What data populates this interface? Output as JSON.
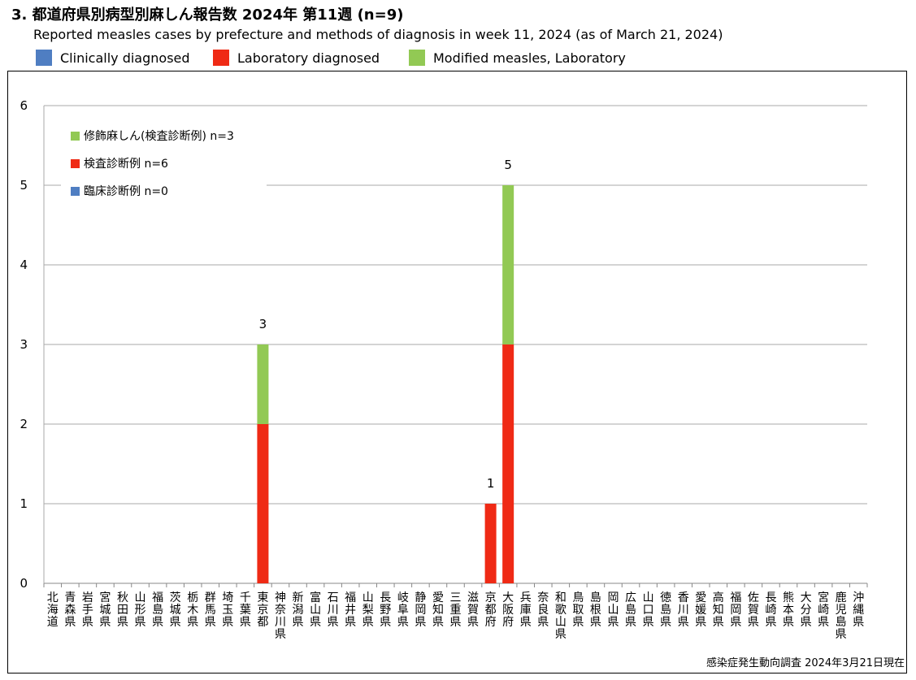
{
  "title": "3. 都道府県別病型別麻しん報告数 2024年 第11週 (n=9)",
  "subtitle": "Reported measles cases by prefecture and methods of diagnosis in week 11, 2024 (as of March 21, 2024)",
  "top_legend": [
    {
      "label": "Clinically diagnosed",
      "color": "#4f7ec2"
    },
    {
      "label": "Laboratory diagnosed",
      "color": "#ef2a15"
    },
    {
      "label": "Modified measles, Laboratory",
      "color": "#92c954"
    }
  ],
  "footnote": "感染症発生動向調査 2024年3月21日現在",
  "chart_data": {
    "type": "bar",
    "stacked": true,
    "ylim": [
      0,
      6
    ],
    "yticks": [
      0,
      1,
      2,
      3,
      4,
      5,
      6
    ],
    "grid": true,
    "legend_position": "top-left",
    "categories": [
      "北海道",
      "青森県",
      "岩手県",
      "宮城県",
      "秋田県",
      "山形県",
      "福島県",
      "茨城県",
      "栃木県",
      "群馬県",
      "埼玉県",
      "千葉県",
      "東京都",
      "神奈川県",
      "新潟県",
      "富山県",
      "石川県",
      "福井県",
      "山梨県",
      "長野県",
      "岐阜県",
      "静岡県",
      "愛知県",
      "三重県",
      "滋賀県",
      "京都府",
      "大阪府",
      "兵庫県",
      "奈良県",
      "和歌山県",
      "鳥取県",
      "島根県",
      "岡山県",
      "広島県",
      "山口県",
      "徳島県",
      "香川県",
      "愛媛県",
      "高知県",
      "福岡県",
      "佐賀県",
      "長崎県",
      "熊本県",
      "大分県",
      "宮崎県",
      "鹿児島県",
      "沖縄県"
    ],
    "series": [
      {
        "name": "臨床診断例 n=0",
        "color": "#4f7ec2",
        "values": [
          0,
          0,
          0,
          0,
          0,
          0,
          0,
          0,
          0,
          0,
          0,
          0,
          0,
          0,
          0,
          0,
          0,
          0,
          0,
          0,
          0,
          0,
          0,
          0,
          0,
          0,
          0,
          0,
          0,
          0,
          0,
          0,
          0,
          0,
          0,
          0,
          0,
          0,
          0,
          0,
          0,
          0,
          0,
          0,
          0,
          0,
          0
        ]
      },
      {
        "name": "検査診断例 n=6",
        "color": "#ef2a15",
        "values": [
          0,
          0,
          0,
          0,
          0,
          0,
          0,
          0,
          0,
          0,
          0,
          0,
          2,
          0,
          0,
          0,
          0,
          0,
          0,
          0,
          0,
          0,
          0,
          0,
          0,
          1,
          3,
          0,
          0,
          0,
          0,
          0,
          0,
          0,
          0,
          0,
          0,
          0,
          0,
          0,
          0,
          0,
          0,
          0,
          0,
          0,
          0
        ]
      },
      {
        "name": "修飾麻しん(検査診断例) n=3",
        "color": "#92c954",
        "values": [
          0,
          0,
          0,
          0,
          0,
          0,
          0,
          0,
          0,
          0,
          0,
          0,
          1,
          0,
          0,
          0,
          0,
          0,
          0,
          0,
          0,
          0,
          0,
          0,
          0,
          0,
          2,
          0,
          0,
          0,
          0,
          0,
          0,
          0,
          0,
          0,
          0,
          0,
          0,
          0,
          0,
          0,
          0,
          0,
          0,
          0,
          0
        ]
      }
    ],
    "legend_order": [
      2,
      1,
      0
    ]
  }
}
